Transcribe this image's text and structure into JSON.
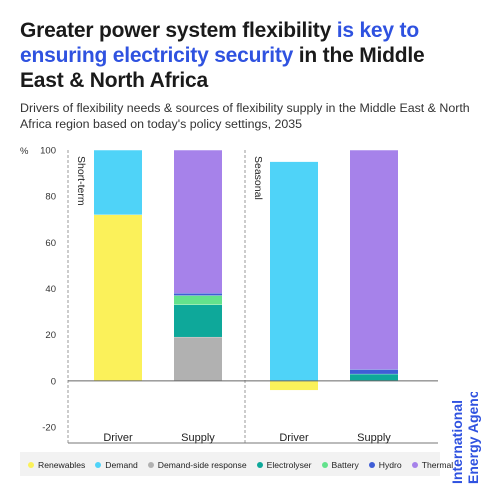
{
  "title": {
    "part1": "Greater power system flexibility ",
    "part2": "is key to ensuring electricity security",
    "part3": " in the Middle East & North Africa"
  },
  "subtitle": "Drivers of flexibility needs & sources of flexibility supply in the Middle East & North Africa region based on today's policy settings, 2035",
  "brand": {
    "line1": "International",
    "line2": "Energy Agency",
    "color": "#2f52e0"
  },
  "chart_data": {
    "type": "bar",
    "stacked": true,
    "yunit": "%",
    "ylim": [
      -20,
      100
    ],
    "yticks": [
      -20,
      0,
      20,
      40,
      60,
      80,
      100
    ],
    "grid": false,
    "legend_position": "bottom",
    "panels": [
      {
        "label": "Short-term",
        "categories": [
          "Driver",
          "Supply"
        ]
      },
      {
        "label": "Seasonal",
        "categories": [
          "Driver",
          "Supply"
        ]
      }
    ],
    "series": [
      {
        "name": "Renewables",
        "color": "#fbf15a",
        "values": [
          72,
          0,
          -4,
          0
        ]
      },
      {
        "name": "Demand",
        "color": "#4fd3f8",
        "values": [
          28,
          0,
          95,
          0
        ]
      },
      {
        "name": "Demand-side response",
        "color": "#b1b1b1",
        "values": [
          0,
          19,
          0,
          0
        ]
      },
      {
        "name": "Electrolyser",
        "color": "#0ea89a",
        "values": [
          0,
          14,
          0,
          3
        ]
      },
      {
        "name": "Battery",
        "color": "#63e28c",
        "values": [
          0,
          4,
          0,
          0
        ]
      },
      {
        "name": "Hydro",
        "color": "#3f5ed6",
        "values": [
          0,
          1,
          0,
          2
        ]
      },
      {
        "name": "Thermal",
        "color": "#a682ea",
        "values": [
          0,
          62,
          0,
          95
        ]
      }
    ]
  }
}
